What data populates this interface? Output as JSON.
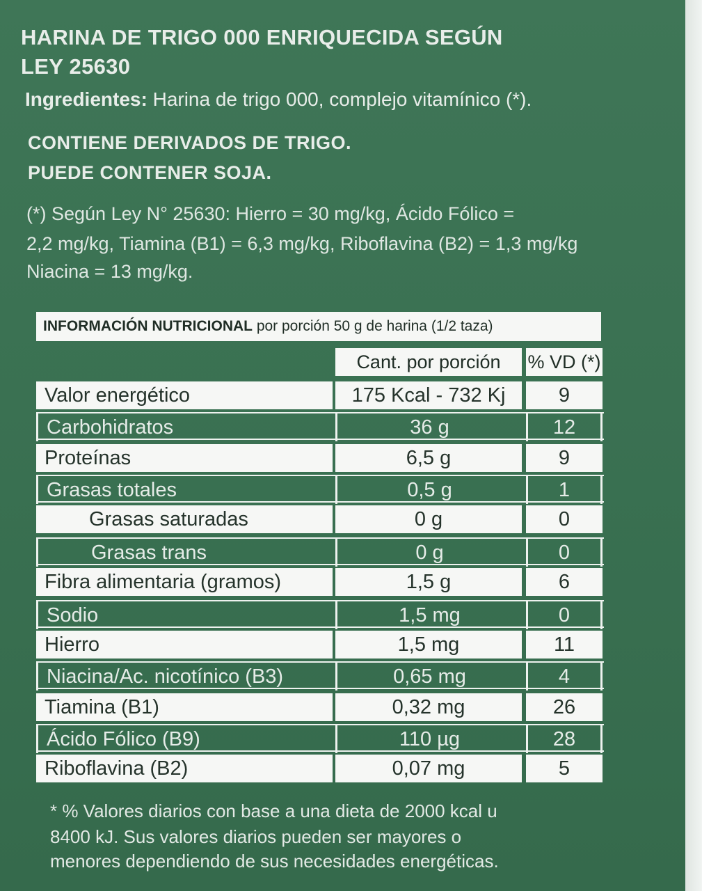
{
  "label": {
    "title_line1": "HARINA DE TRIGO 000 ENRIQUECIDA SEGÚN",
    "title_line2": "LEY 25630",
    "ingredients_heading": "Ingredientes:",
    "ingredients_text": " Harina de trigo 000, complejo vitamínico (*).",
    "allergen_line1": "CONTIENE DERIVADOS DE TRIGO.",
    "allergen_line2": "PUEDE CONTENER SOJA.",
    "note_line1": "(*) Según Ley N° 25630: Hierro = 30 mg/kg, Ácido Fólico =",
    "note_line2": "2,2 mg/kg, Tiamina (B1) = 6,3 mg/kg, Riboflavina (B2) = 1,3 mg/kg",
    "note_line3": "Niacina = 13 mg/kg."
  },
  "nutrition": {
    "header_bold": "INFORMACIÓN NUTRICIONAL",
    "header_rest": " por porción 50 g de harina (1/2 taza)",
    "col_quantity": "Cant. por porción",
    "col_vd": "% VD (*)",
    "rows": [
      {
        "name": "Valor energético",
        "qty": "175 Kcal - 732 Kj",
        "vd": "9"
      },
      {
        "name": "Carbohidratos",
        "qty": "36 g",
        "vd": "12"
      },
      {
        "name": "Proteínas",
        "qty": "6,5 g",
        "vd": "9"
      },
      {
        "name": "Grasas totales",
        "qty": "0,5 g",
        "vd": "1"
      },
      {
        "name": "Grasas saturadas",
        "qty": "0 g",
        "vd": "0"
      },
      {
        "name": "Grasas trans",
        "qty": "0 g",
        "vd": "0"
      },
      {
        "name": "Fibra alimentaria (gramos)",
        "qty": "1,5 g",
        "vd": "6"
      },
      {
        "name": "Sodio",
        "qty": "1,5 mg",
        "vd": "0"
      },
      {
        "name": "Hierro",
        "qty": "1,5 mg",
        "vd": "11"
      },
      {
        "name": "Niacina/Ac. nicotínico (B3)",
        "qty": "0,65 mg",
        "vd": "4"
      },
      {
        "name": "Tiamina (B1)",
        "qty": "0,32 mg",
        "vd": "26"
      },
      {
        "name": "Ácido Fólico (B9)",
        "qty": "110 µg",
        "vd": "28"
      },
      {
        "name": "Riboflavina (B2)",
        "qty": "0,07 mg",
        "vd": "5"
      }
    ],
    "footnote_line1": "* % Valores diarios con base a una dieta de 2000 kcal u",
    "footnote_line2": "8400 kJ. Sus valores diarios pueden ser mayores o",
    "footnote_line3": "menores dependiendo de sus necesidades energéticas."
  }
}
